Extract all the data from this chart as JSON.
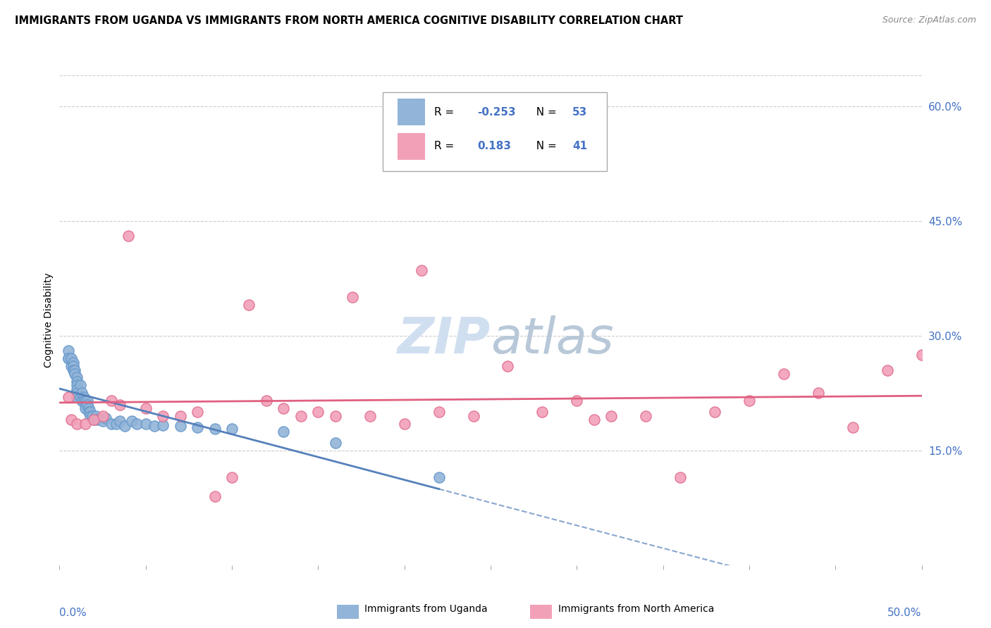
{
  "title": "IMMIGRANTS FROM UGANDA VS IMMIGRANTS FROM NORTH AMERICA COGNITIVE DISABILITY CORRELATION CHART",
  "source": "Source: ZipAtlas.com",
  "ylabel": "Cognitive Disability",
  "right_yticks": [
    "15.0%",
    "30.0%",
    "45.0%",
    "60.0%"
  ],
  "right_ytick_vals": [
    0.15,
    0.3,
    0.45,
    0.6
  ],
  "xlim": [
    0.0,
    0.5
  ],
  "ylim": [
    0.0,
    0.64
  ],
  "color_uganda": "#92b4d8",
  "color_uganda_border": "#6699cc",
  "color_north_america": "#f2a0b8",
  "color_north_america_border": "#e07090",
  "color_uganda_line": "#5580bb",
  "color_north_america_line": "#e06080",
  "color_text_blue": "#4472C4",
  "color_grid": "#cccccc",
  "watermark_color": "#d0dff0",
  "uganda_scatter_x": [
    0.005,
    0.005,
    0.005,
    0.007,
    0.007,
    0.008,
    0.008,
    0.008,
    0.009,
    0.009,
    0.01,
    0.01,
    0.01,
    0.01,
    0.01,
    0.01,
    0.012,
    0.012,
    0.013,
    0.013,
    0.014,
    0.014,
    0.015,
    0.015,
    0.015,
    0.016,
    0.016,
    0.017,
    0.017,
    0.018,
    0.018,
    0.019,
    0.02,
    0.021,
    0.022,
    0.025,
    0.027,
    0.03,
    0.033,
    0.035,
    0.038,
    0.042,
    0.045,
    0.05,
    0.055,
    0.06,
    0.07,
    0.08,
    0.09,
    0.1,
    0.13,
    0.16,
    0.22
  ],
  "uganda_scatter_y": [
    0.27,
    0.28,
    0.27,
    0.27,
    0.26,
    0.265,
    0.26,
    0.255,
    0.255,
    0.25,
    0.245,
    0.24,
    0.235,
    0.23,
    0.225,
    0.22,
    0.235,
    0.22,
    0.225,
    0.215,
    0.22,
    0.215,
    0.215,
    0.21,
    0.205,
    0.215,
    0.21,
    0.205,
    0.2,
    0.2,
    0.195,
    0.195,
    0.19,
    0.195,
    0.19,
    0.188,
    0.192,
    0.185,
    0.185,
    0.188,
    0.182,
    0.188,
    0.185,
    0.185,
    0.182,
    0.183,
    0.182,
    0.18,
    0.178,
    0.178,
    0.175,
    0.16,
    0.115
  ],
  "north_america_scatter_x": [
    0.005,
    0.007,
    0.01,
    0.015,
    0.02,
    0.025,
    0.03,
    0.035,
    0.04,
    0.05,
    0.06,
    0.07,
    0.08,
    0.09,
    0.1,
    0.11,
    0.12,
    0.13,
    0.14,
    0.15,
    0.16,
    0.17,
    0.18,
    0.2,
    0.21,
    0.22,
    0.24,
    0.26,
    0.28,
    0.3,
    0.31,
    0.32,
    0.34,
    0.36,
    0.38,
    0.4,
    0.42,
    0.44,
    0.46,
    0.48,
    0.5
  ],
  "north_america_scatter_y": [
    0.22,
    0.19,
    0.185,
    0.185,
    0.19,
    0.195,
    0.215,
    0.21,
    0.43,
    0.205,
    0.195,
    0.195,
    0.2,
    0.09,
    0.115,
    0.34,
    0.215,
    0.205,
    0.195,
    0.2,
    0.195,
    0.35,
    0.195,
    0.185,
    0.385,
    0.2,
    0.195,
    0.26,
    0.2,
    0.215,
    0.19,
    0.195,
    0.195,
    0.115,
    0.2,
    0.215,
    0.25,
    0.225,
    0.18,
    0.255,
    0.275
  ]
}
